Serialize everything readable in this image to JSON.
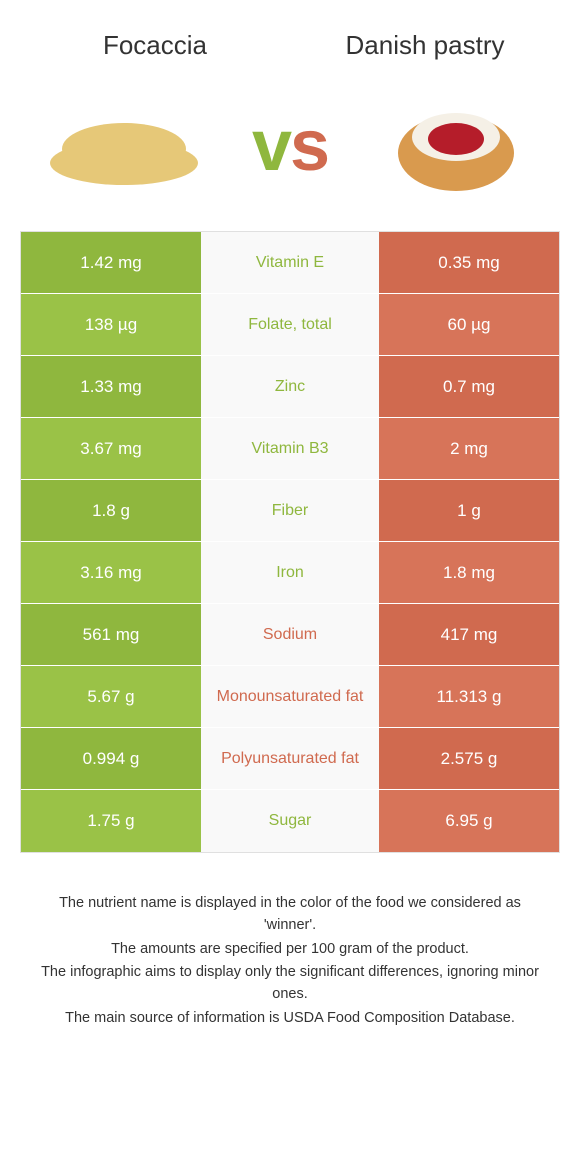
{
  "colors": {
    "left": "#8fb73e",
    "right": "#d06a4f",
    "left_alt": "#9ac247",
    "right_alt": "#d77459",
    "mid_bg": "#f9f9f9",
    "border": "#e0e0e0",
    "text": "#333333"
  },
  "header": {
    "left_title": "Focaccia",
    "right_title": "Danish pastry",
    "vs": "vs"
  },
  "rows": [
    {
      "left": "1.42 mg",
      "label": "Vitamin E",
      "right": "0.35 mg",
      "winner": "left"
    },
    {
      "left": "138 µg",
      "label": "Folate, total",
      "right": "60 µg",
      "winner": "left"
    },
    {
      "left": "1.33 mg",
      "label": "Zinc",
      "right": "0.7 mg",
      "winner": "left"
    },
    {
      "left": "3.67 mg",
      "label": "Vitamin B3",
      "right": "2 mg",
      "winner": "left"
    },
    {
      "left": "1.8 g",
      "label": "Fiber",
      "right": "1 g",
      "winner": "left"
    },
    {
      "left": "3.16 mg",
      "label": "Iron",
      "right": "1.8 mg",
      "winner": "left"
    },
    {
      "left": "561 mg",
      "label": "Sodium",
      "right": "417 mg",
      "winner": "right"
    },
    {
      "left": "5.67 g",
      "label": "Monounsaturated fat",
      "right": "11.313 g",
      "winner": "right"
    },
    {
      "left": "0.994 g",
      "label": "Polyunsaturated fat",
      "right": "2.575 g",
      "winner": "right"
    },
    {
      "left": "1.75 g",
      "label": "Sugar",
      "right": "6.95 g",
      "winner": "left"
    }
  ],
  "footnotes": [
    "The nutrient name is displayed in the color of the food we considered as 'winner'.",
    "The amounts are specified per 100 gram of the product.",
    "The infographic aims to display only the significant differences, ignoring minor ones.",
    "The main source of information is USDA Food Composition Database."
  ]
}
